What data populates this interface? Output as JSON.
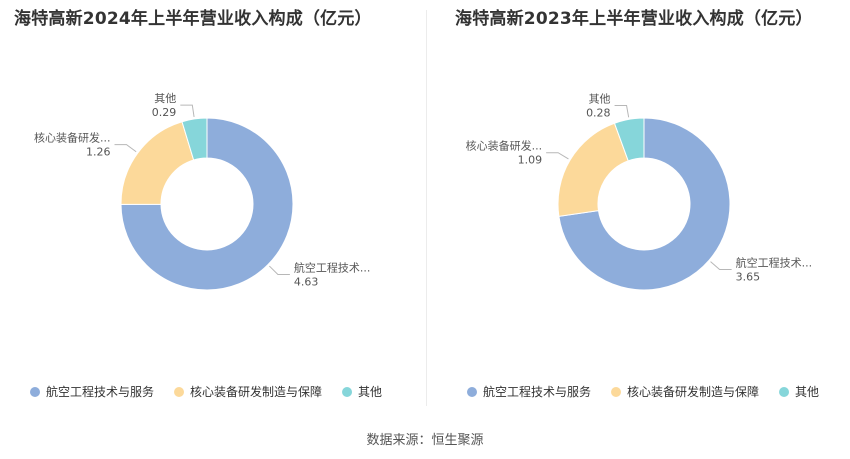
{
  "titles": {
    "left": "海特高新2024年上半年营业收入构成（亿元）",
    "right": "海特高新2023年上半年营业收入构成（亿元）"
  },
  "source": "数据来源：恒生聚源",
  "colors": {
    "aviation": "#8eaddb",
    "equipment": "#fcd99a",
    "other": "#86d6da",
    "leader": "#b7b7b7",
    "label": "#555555"
  },
  "chart_data": [
    {
      "type": "pie",
      "style": "donut",
      "title": "海特高新2024年上半年营业收入构成（亿元）",
      "series": [
        {
          "name": "航空工程技术与服务",
          "short_label": "航空工程技术...",
          "value": 4.63,
          "color": "#8eaddb"
        },
        {
          "name": "核心装备研发制造与保障",
          "short_label": "核心装备研发...",
          "value": 1.26,
          "color": "#fcd99a"
        },
        {
          "name": "其他",
          "short_label": "其他",
          "value": 0.29,
          "color": "#86d6da"
        }
      ],
      "legend": [
        "航空工程技术与服务",
        "核心装备研发制造与保障",
        "其他"
      ],
      "legend_position": "bottom"
    },
    {
      "type": "pie",
      "style": "donut",
      "title": "海特高新2023年上半年营业收入构成（亿元）",
      "series": [
        {
          "name": "航空工程技术与服务",
          "short_label": "航空工程技术...",
          "value": 3.65,
          "color": "#8eaddb"
        },
        {
          "name": "核心装备研发制造与保障",
          "short_label": "核心装备研发...",
          "value": 1.09,
          "color": "#fcd99a"
        },
        {
          "name": "其他",
          "short_label": "其他",
          "value": 0.28,
          "color": "#86d6da"
        }
      ],
      "legend": [
        "航空工程技术与服务",
        "核心装备研发制造与保障",
        "其他"
      ],
      "legend_position": "bottom"
    }
  ]
}
